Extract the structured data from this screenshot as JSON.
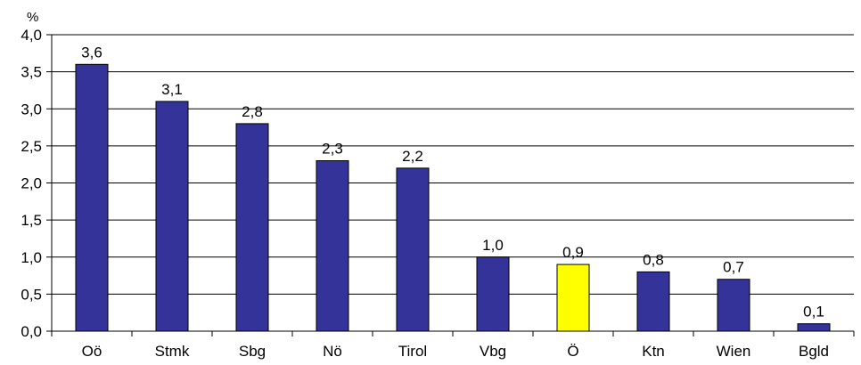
{
  "chart_data": {
    "type": "bar",
    "unit": "%",
    "categories": [
      "Oö",
      "Stmk",
      "Sbg",
      "Nö",
      "Tirol",
      "Vbg",
      "Ö",
      "Ktn",
      "Wien",
      "Bgld"
    ],
    "values": [
      3.6,
      3.1,
      2.8,
      2.3,
      2.2,
      1.0,
      0.9,
      0.8,
      0.7,
      0.1
    ],
    "data_labels": [
      "3,6",
      "3,1",
      "2,8",
      "2,3",
      "2,2",
      "1,0",
      "0,9",
      "0,8",
      "0,7",
      "0,1"
    ],
    "ylim": [
      0,
      4.0
    ],
    "y_ticks": [
      0,
      0.5,
      1.0,
      1.5,
      2.0,
      2.5,
      3.0,
      3.5,
      4.0
    ],
    "y_tick_labels": [
      "0,0",
      "0,5",
      "1,0",
      "1,5",
      "2,0",
      "2,5",
      "3,0",
      "3,5",
      "4,0"
    ],
    "grid": true,
    "legend": false,
    "colors": {
      "bar": "#333399",
      "highlight": "#ffff00",
      "highlight_category": "Ö",
      "bar_stroke": "#000000",
      "grid": "#000000"
    }
  }
}
